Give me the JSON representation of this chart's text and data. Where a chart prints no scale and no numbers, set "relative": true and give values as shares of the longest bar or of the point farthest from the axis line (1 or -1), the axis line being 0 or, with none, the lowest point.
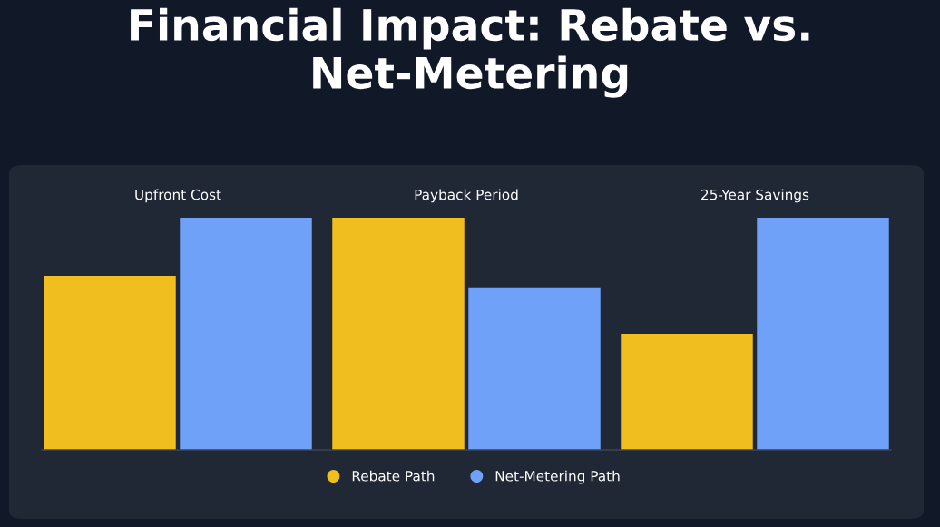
{
  "chart_data": {
    "type": "bar",
    "title": "Financial Impact: Rebate vs. Net-Metering",
    "relative": true,
    "categories": [
      "Upfront Cost",
      "Payback Period",
      "25-Year Savings"
    ],
    "legend": "bottom",
    "series": [
      {
        "name": "Rebate Path",
        "color": "#f0be1e",
        "values": [
          0.75,
          1,
          0.5
        ]
      },
      {
        "name": "Net-Metering Path",
        "color": "#70a1f9",
        "values": [
          1,
          0.7,
          1
        ]
      }
    ]
  }
}
